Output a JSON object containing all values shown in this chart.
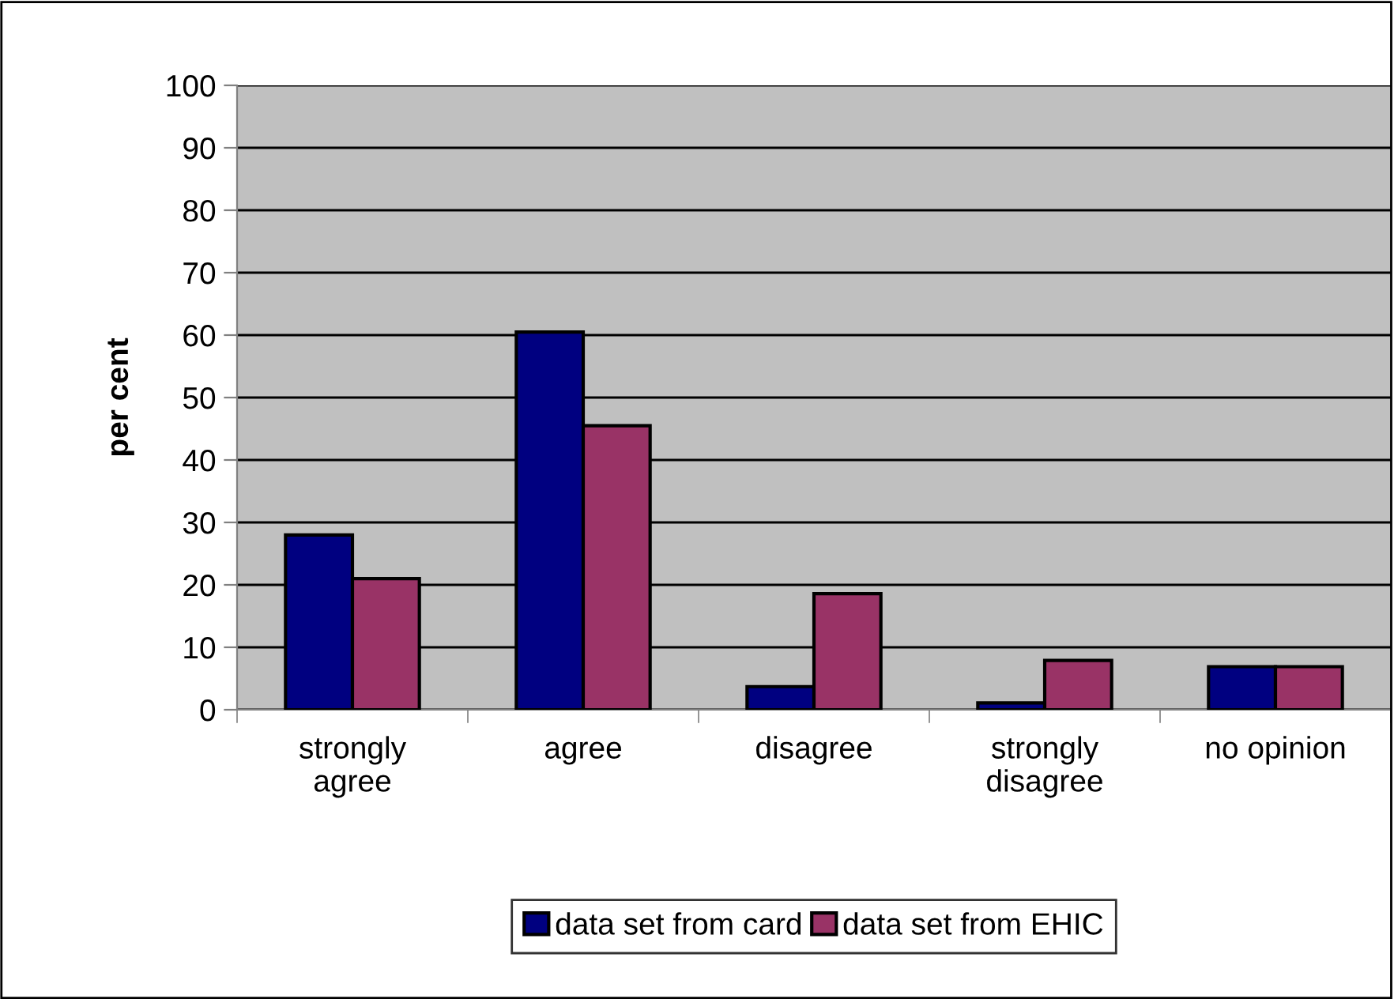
{
  "chart_data": {
    "type": "bar",
    "ylabel": "per cent",
    "categories": [
      "strongly\nagree",
      "agree",
      "disagree",
      "strongly\ndisagree",
      "no opinion"
    ],
    "series": [
      {
        "name": "data set from card",
        "color": "#000080",
        "values": [
          28,
          60.5,
          3.7,
          1.1,
          6.9
        ]
      },
      {
        "name": "data set from EHIC",
        "color": "#993366",
        "values": [
          21,
          45.5,
          18.6,
          7.9,
          6.9
        ]
      }
    ],
    "ylim": [
      0,
      100
    ],
    "yticks": [
      0,
      10,
      20,
      30,
      40,
      50,
      60,
      70,
      80,
      90,
      100
    ],
    "grid": "y",
    "legend": "bottom"
  }
}
